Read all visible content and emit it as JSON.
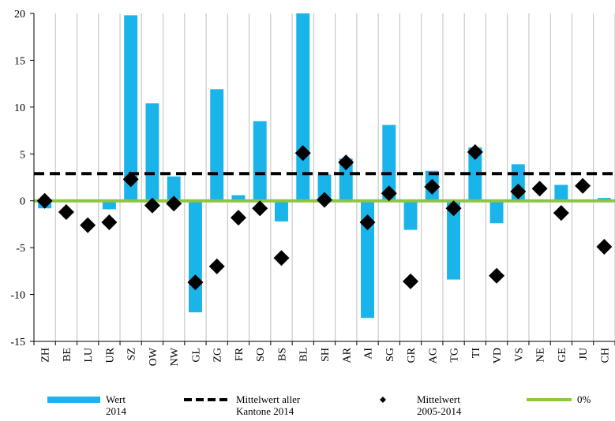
{
  "chart_data": {
    "type": "bar",
    "categories": [
      "ZH",
      "BE",
      "LU",
      "UR",
      "SZ",
      "OW",
      "NW",
      "GL",
      "ZG",
      "FR",
      "SO",
      "BS",
      "BL",
      "SH",
      "AR",
      "AI",
      "SG",
      "GR",
      "AG",
      "TG",
      "TI",
      "VD",
      "VS",
      "NE",
      "GE",
      "JU",
      "CH"
    ],
    "series": [
      {
        "name": "Wert 2014",
        "type": "bar",
        "color": "#18b4ea",
        "values": [
          -0.8,
          0,
          0,
          -0.9,
          19.8,
          10.4,
          2.6,
          -11.9,
          11.9,
          0.6,
          8.5,
          -2.2,
          20,
          2.8,
          4.5,
          -12.5,
          8.1,
          -3.1,
          3.2,
          -8.4,
          5.7,
          -2.4,
          3.9,
          0,
          1.7,
          0,
          0.3
        ]
      },
      {
        "name": "Mittelwert 2005-2014",
        "type": "scatter",
        "color": "#000000",
        "values": [
          0,
          -1.2,
          -2.6,
          -2.3,
          2.3,
          -0.5,
          -0.3,
          -8.7,
          -7.0,
          -1.8,
          -0.8,
          -6.1,
          5.1,
          0.1,
          4.1,
          -2.3,
          0.8,
          -8.6,
          1.5,
          -0.8,
          5.2,
          -8.0,
          1.0,
          1.3,
          -1.3,
          1.6,
          -4.9
        ]
      }
    ],
    "reference_lines": [
      {
        "name": "Mittelwert aller Kantone 2014",
        "value": 2.9,
        "style": "dashed",
        "color": "#000000"
      },
      {
        "name": "0%",
        "value": 0,
        "style": "solid",
        "color": "#8dc63f"
      }
    ],
    "yticks": [
      20,
      15,
      10,
      5,
      0,
      -5,
      -10,
      -15
    ],
    "ylim": [
      -15,
      20
    ],
    "grid": "vertical",
    "legend_position": "bottom",
    "legend": [
      {
        "line1": "Wert",
        "line2": "2014",
        "kind": "bar",
        "color": "#18b4ea"
      },
      {
        "line1": "Mittelwert aller",
        "line2": "Kantone 2014",
        "kind": "dashed",
        "color": "#000000"
      },
      {
        "line1": "Mittelwert",
        "line2": "2005-2014",
        "kind": "marker",
        "color": "#000000"
      },
      {
        "line1": "0%",
        "line2": "",
        "kind": "solid",
        "color": "#8dc63f"
      }
    ]
  }
}
